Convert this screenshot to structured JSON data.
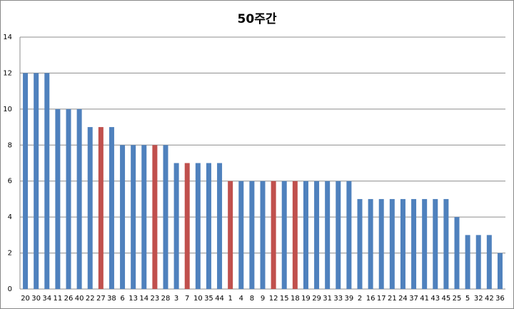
{
  "chart_data": {
    "type": "bar",
    "title": "50주간",
    "categories": [
      "20",
      "30",
      "34",
      "11",
      "26",
      "40",
      "22",
      "27",
      "38",
      "6",
      "13",
      "14",
      "23",
      "28",
      "3",
      "7",
      "10",
      "35",
      "44",
      "1",
      "4",
      "8",
      "9",
      "12",
      "15",
      "18",
      "19",
      "29",
      "31",
      "33",
      "39",
      "2",
      "16",
      "17",
      "21",
      "24",
      "37",
      "41",
      "43",
      "45",
      "25",
      "5",
      "32",
      "42",
      "36"
    ],
    "values": [
      12,
      12,
      12,
      10,
      10,
      10,
      9,
      9,
      9,
      8,
      8,
      8,
      8,
      8,
      7,
      7,
      7,
      7,
      7,
      6,
      6,
      6,
      6,
      6,
      6,
      6,
      6,
      6,
      6,
      6,
      6,
      5,
      5,
      5,
      5,
      5,
      5,
      5,
      5,
      5,
      4,
      3,
      3,
      3,
      2
    ],
    "colors": [
      "#4f81bd",
      "#4f81bd",
      "#4f81bd",
      "#4f81bd",
      "#4f81bd",
      "#4f81bd",
      "#4f81bd",
      "#c0504d",
      "#4f81bd",
      "#4f81bd",
      "#4f81bd",
      "#4f81bd",
      "#c0504d",
      "#4f81bd",
      "#4f81bd",
      "#c0504d",
      "#4f81bd",
      "#4f81bd",
      "#4f81bd",
      "#c0504d",
      "#4f81bd",
      "#4f81bd",
      "#4f81bd",
      "#c0504d",
      "#4f81bd",
      "#c0504d",
      "#4f81bd",
      "#4f81bd",
      "#4f81bd",
      "#4f81bd",
      "#4f81bd",
      "#4f81bd",
      "#4f81bd",
      "#4f81bd",
      "#4f81bd",
      "#4f81bd",
      "#4f81bd",
      "#4f81bd",
      "#4f81bd",
      "#4f81bd",
      "#4f81bd",
      "#4f81bd",
      "#4f81bd",
      "#4f81bd",
      "#4f81bd"
    ],
    "ylim": [
      0,
      14
    ],
    "yticks": [
      0,
      2,
      4,
      6,
      8,
      10,
      12,
      14
    ],
    "grid": true
  }
}
